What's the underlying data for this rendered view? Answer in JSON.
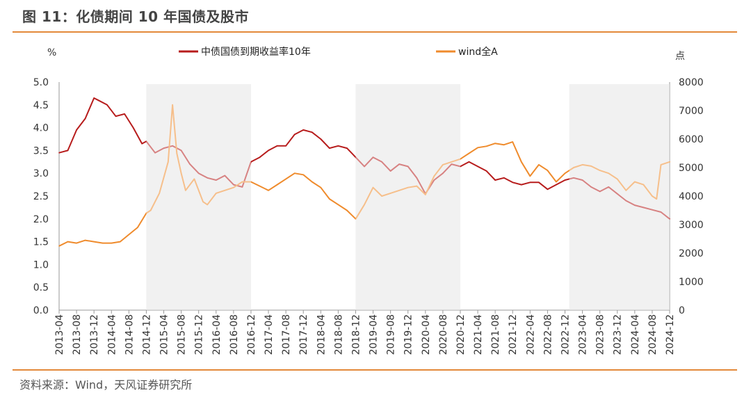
{
  "title": "图 11：化债期间 10 年国债及股市",
  "source": "资料来源：Wind，天风证券研究所",
  "chart_data": {
    "type": "line",
    "left_unit": "%",
    "right_unit": "点",
    "y_left_ticks": [
      "5.0",
      "4.5",
      "4.0",
      "3.5",
      "3.0",
      "2.5",
      "2.0",
      "1.5",
      "1.0",
      "0.5",
      "0.0"
    ],
    "y_right_ticks": [
      "8000",
      "7000",
      "6000",
      "5000",
      "4000",
      "3000",
      "2000",
      "1000",
      "0"
    ],
    "ylim_left": [
      0,
      5
    ],
    "ylim_right": [
      0,
      8000
    ],
    "x_tick_labels": [
      "2013-04",
      "2013-08",
      "2013-12",
      "2014-04",
      "2014-08",
      "2014-12",
      "2015-04",
      "2015-08",
      "2015-12",
      "2016-04",
      "2016-08",
      "2016-12",
      "2017-04",
      "2017-08",
      "2017-12",
      "2018-04",
      "2018-08",
      "2018-12",
      "2019-04",
      "2019-08",
      "2019-12",
      "2020-04",
      "2020-08",
      "2020-12",
      "2021-04",
      "2021-08",
      "2021-12",
      "2022-04",
      "2022-08",
      "2022-12",
      "2023-04",
      "2023-08",
      "2023-12",
      "2024-04",
      "2024-08",
      "2024-12"
    ],
    "shaded_periods": [
      [
        "2014-12",
        "2016-12"
      ],
      [
        "2018-12",
        "2020-12"
      ],
      [
        "2023-01",
        "2024-12"
      ]
    ],
    "series": [
      {
        "name": "中债国债到期收益率10年",
        "axis": "left",
        "color": "#b71c1c",
        "x": [
          "2013-04",
          "2013-06",
          "2013-08",
          "2013-10",
          "2013-12",
          "2014-01",
          "2014-03",
          "2014-05",
          "2014-07",
          "2014-09",
          "2014-11",
          "2014-12",
          "2015-02",
          "2015-04",
          "2015-06",
          "2015-08",
          "2015-10",
          "2015-12",
          "2016-02",
          "2016-04",
          "2016-06",
          "2016-08",
          "2016-10",
          "2016-12",
          "2017-02",
          "2017-04",
          "2017-06",
          "2017-08",
          "2017-10",
          "2017-12",
          "2018-02",
          "2018-04",
          "2018-06",
          "2018-08",
          "2018-10",
          "2018-12",
          "2019-02",
          "2019-04",
          "2019-06",
          "2019-08",
          "2019-10",
          "2019-12",
          "2020-02",
          "2020-04",
          "2020-06",
          "2020-08",
          "2020-10",
          "2020-12",
          "2021-02",
          "2021-04",
          "2021-06",
          "2021-08",
          "2021-10",
          "2021-12",
          "2022-02",
          "2022-04",
          "2022-06",
          "2022-08",
          "2022-10",
          "2022-12",
          "2023-02",
          "2023-04",
          "2023-06",
          "2023-08",
          "2023-10",
          "2023-12",
          "2024-02",
          "2024-04",
          "2024-06",
          "2024-08",
          "2024-10",
          "2024-12"
        ],
        "values": [
          3.45,
          3.5,
          3.95,
          4.2,
          4.65,
          4.6,
          4.5,
          4.25,
          4.3,
          4.0,
          3.65,
          3.7,
          3.45,
          3.55,
          3.6,
          3.5,
          3.2,
          3.0,
          2.9,
          2.85,
          2.95,
          2.75,
          2.7,
          3.25,
          3.35,
          3.5,
          3.6,
          3.6,
          3.85,
          3.95,
          3.9,
          3.75,
          3.55,
          3.6,
          3.55,
          3.35,
          3.15,
          3.35,
          3.25,
          3.05,
          3.2,
          3.15,
          2.9,
          2.55,
          2.85,
          3.0,
          3.2,
          3.15,
          3.25,
          3.15,
          3.05,
          2.85,
          2.9,
          2.8,
          2.75,
          2.8,
          2.8,
          2.65,
          2.75,
          2.85,
          2.9,
          2.85,
          2.7,
          2.6,
          2.7,
          2.55,
          2.4,
          2.3,
          2.25,
          2.2,
          2.15,
          2.0
        ]
      },
      {
        "name": "wind全A",
        "axis": "right",
        "color": "#ef8b2c",
        "x": [
          "2013-04",
          "2013-06",
          "2013-08",
          "2013-10",
          "2013-12",
          "2014-02",
          "2014-04",
          "2014-06",
          "2014-08",
          "2014-10",
          "2014-12",
          "2015-01",
          "2015-03",
          "2015-05",
          "2015-06",
          "2015-07",
          "2015-08",
          "2015-09",
          "2015-11",
          "2016-01",
          "2016-02",
          "2016-04",
          "2016-06",
          "2016-08",
          "2016-10",
          "2016-12",
          "2017-02",
          "2017-04",
          "2017-06",
          "2017-08",
          "2017-10",
          "2017-12",
          "2018-02",
          "2018-04",
          "2018-06",
          "2018-08",
          "2018-10",
          "2018-12",
          "2019-02",
          "2019-04",
          "2019-06",
          "2019-08",
          "2019-10",
          "2019-12",
          "2020-02",
          "2020-04",
          "2020-06",
          "2020-08",
          "2020-10",
          "2020-12",
          "2021-02",
          "2021-04",
          "2021-06",
          "2021-08",
          "2021-10",
          "2021-12",
          "2022-02",
          "2022-04",
          "2022-06",
          "2022-08",
          "2022-10",
          "2022-12",
          "2023-02",
          "2023-04",
          "2023-06",
          "2023-08",
          "2023-10",
          "2023-12",
          "2024-02",
          "2024-04",
          "2024-06",
          "2024-08",
          "2024-09",
          "2024-10",
          "2024-12"
        ],
        "values": [
          2250,
          2400,
          2350,
          2450,
          2400,
          2350,
          2350,
          2400,
          2650,
          2900,
          3400,
          3500,
          4100,
          5200,
          7200,
          5500,
          4800,
          4200,
          4600,
          3800,
          3700,
          4100,
          4200,
          4300,
          4500,
          4500,
          4350,
          4200,
          4400,
          4600,
          4800,
          4750,
          4500,
          4300,
          3900,
          3700,
          3500,
          3200,
          3700,
          4300,
          4000,
          4100,
          4200,
          4300,
          4350,
          4050,
          4700,
          5100,
          5200,
          5300,
          5500,
          5700,
          5750,
          5850,
          5800,
          5900,
          5200,
          4700,
          5100,
          4900,
          4500,
          4800,
          5000,
          5100,
          5050,
          4900,
          4800,
          4600,
          4200,
          4500,
          4400,
          4000,
          3900,
          5100,
          5200
        ]
      }
    ]
  }
}
